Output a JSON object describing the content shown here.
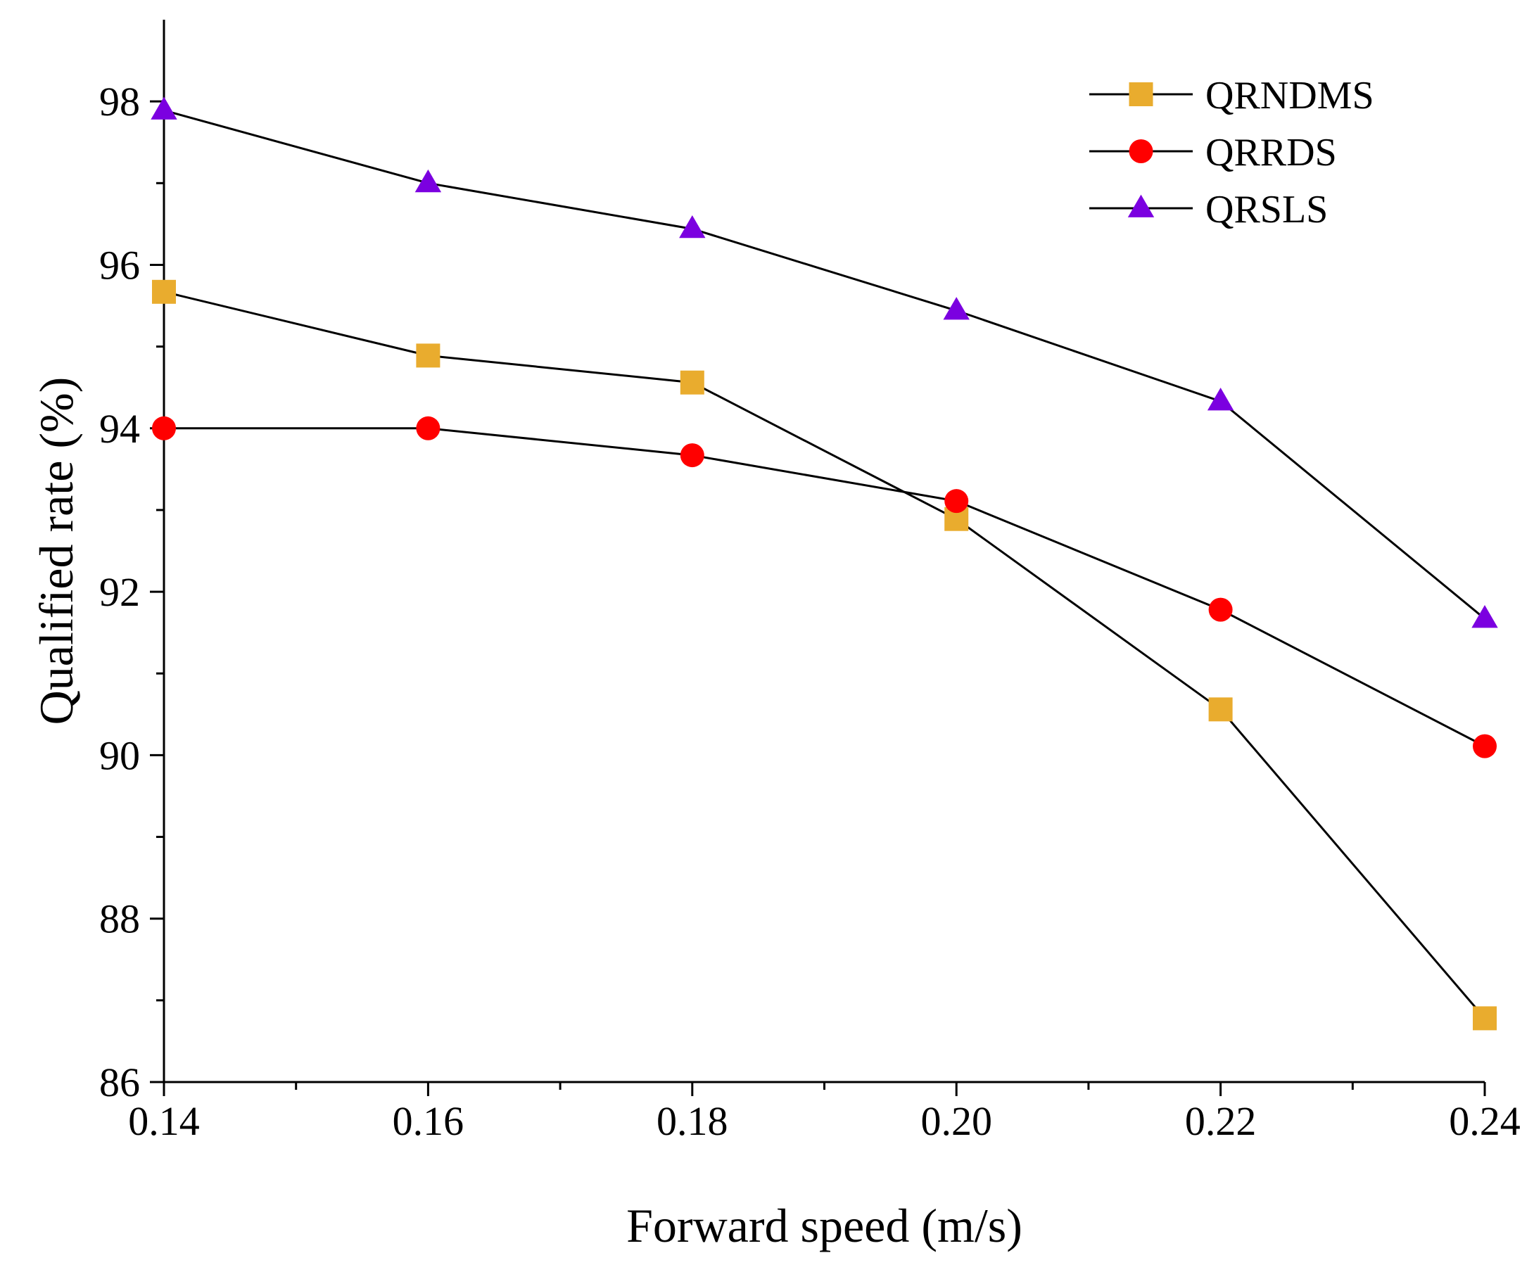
{
  "chart_data": {
    "type": "line",
    "xlabel": "Forward speed (m/s)",
    "ylabel": "Qualified rate (%)",
    "x": [
      0.14,
      0.16,
      0.18,
      0.2,
      0.22,
      0.24
    ],
    "x_tick_labels": [
      "0.14",
      "0.16",
      "0.18",
      "0.20",
      "0.22",
      "0.24"
    ],
    "xlim": [
      0.14,
      0.24
    ],
    "ylim": [
      86,
      99
    ],
    "y_ticks": [
      86,
      88,
      90,
      92,
      94,
      96,
      98
    ],
    "y_tick_labels": [
      "86",
      "88",
      "90",
      "92",
      "94",
      "96",
      "98"
    ],
    "grid": false,
    "legend_position": "top-right",
    "series": [
      {
        "name": "QRNDMS",
        "marker": "square",
        "color": "#E9AC2E",
        "values": [
          95.67,
          94.89,
          94.56,
          92.89,
          90.56,
          86.78
        ]
      },
      {
        "name": "QRRDS",
        "marker": "circle",
        "color": "#FF0000",
        "values": [
          94.0,
          94.0,
          93.67,
          93.11,
          91.78,
          90.11
        ]
      },
      {
        "name": "QRSLS",
        "marker": "triangle",
        "color": "#7B00E0",
        "values": [
          97.89,
          97.0,
          96.44,
          95.44,
          94.33,
          91.67
        ]
      }
    ]
  }
}
